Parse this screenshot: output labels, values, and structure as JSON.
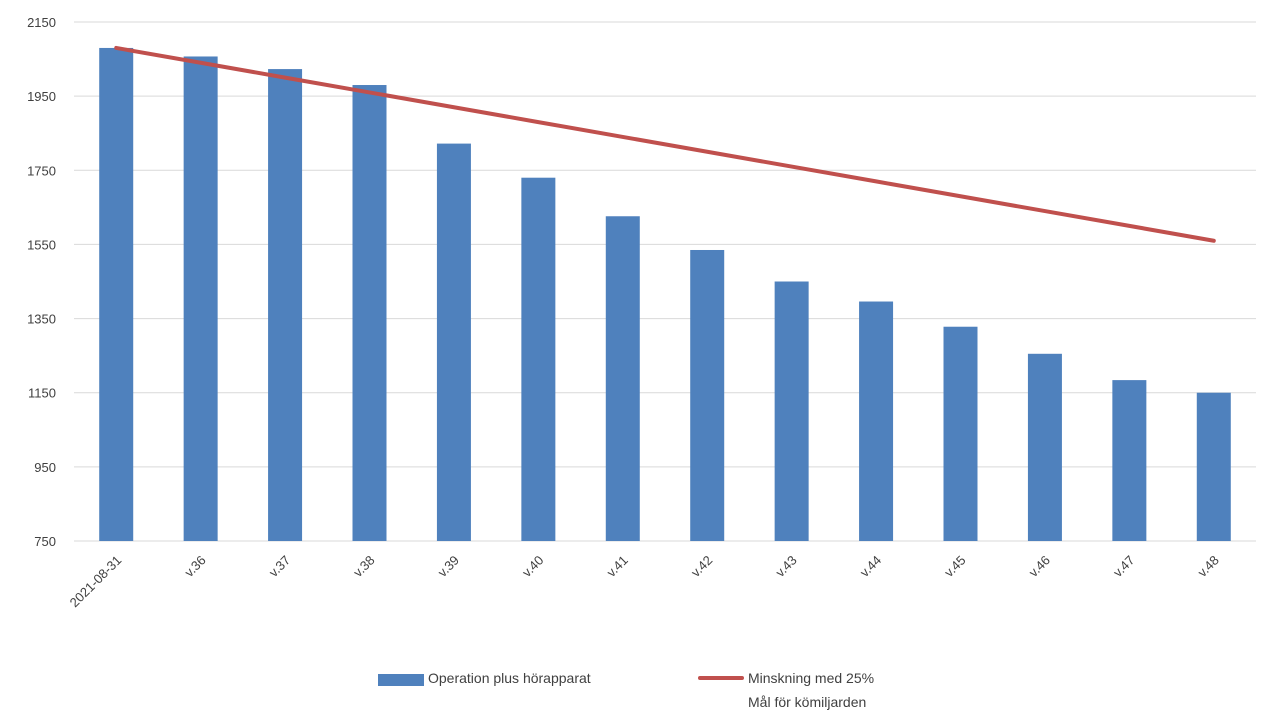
{
  "chart_data": {
    "type": "bar",
    "title": "",
    "xlabel": "",
    "ylabel": "",
    "categories": [
      "2021-08-31",
      "v.36",
      "v.37",
      "v.38",
      "v.39",
      "v.40",
      "v.41",
      "v.42",
      "v.43",
      "v.44",
      "v.45",
      "v.46",
      "v.47",
      "v.48"
    ],
    "y_ticks": [
      750,
      950,
      1150,
      1350,
      1550,
      1750,
      1950,
      2150
    ],
    "ylim": [
      750,
      2150
    ],
    "grid": true,
    "legend_position": "bottom",
    "series": [
      {
        "name": "Operation plus hörapparat",
        "kind": "bar",
        "color": "#4f81bd",
        "values": [
          2080,
          2057,
          2023,
          1980,
          1822,
          1730,
          1626,
          1535,
          1450,
          1396,
          1328,
          1255,
          1184,
          1150
        ]
      },
      {
        "name": "Minskning med 25%",
        "name_line2": "Mål för kömiljarden",
        "kind": "line",
        "color": "#c0504d",
        "values": [
          2080,
          2040,
          2000,
          1960,
          1920,
          1880,
          1840,
          1800,
          1760,
          1720,
          1680,
          1640,
          1600,
          1560
        ]
      }
    ]
  }
}
